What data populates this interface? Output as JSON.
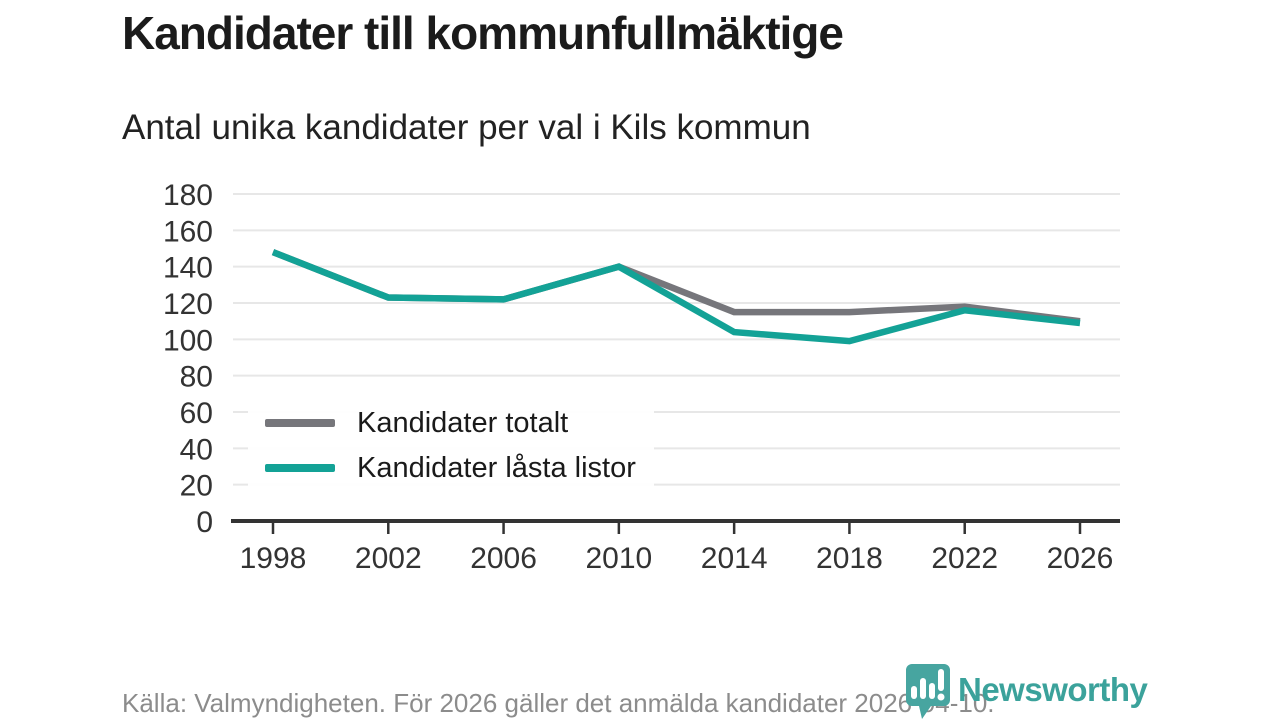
{
  "header": {
    "title": "Kandidater till kommunfullmäktige",
    "subtitle": "Antal unika kandidater per val i Kils kommun"
  },
  "chart_data": {
    "type": "line",
    "categories": [
      "1998",
      "2002",
      "2006",
      "2010",
      "2014",
      "2018",
      "2022",
      "2026"
    ],
    "series": [
      {
        "name": "Kandidater totalt",
        "color": "#76767b",
        "values": [
          148,
          123,
          122,
          140,
          115,
          115,
          118,
          110
        ]
      },
      {
        "name": "Kandidater låsta listor",
        "color": "#13a296",
        "values": [
          148,
          123,
          122,
          140,
          104,
          99,
          116,
          109
        ]
      }
    ],
    "title": "Kandidater till kommunfullmäktige",
    "subtitle": "Antal unika kandidater per val i Kils kommun",
    "xlabel": "",
    "ylabel": "",
    "ylim": [
      0,
      180
    ],
    "yticks": [
      0,
      20,
      40,
      60,
      80,
      100,
      120,
      140,
      160,
      180
    ],
    "grid": "horizontal",
    "legend_position": "inside-bottom-left"
  },
  "footer": {
    "source": "Källa: Valmyndigheten. För 2026 gäller det anmälda kandidater 2026-04-10."
  },
  "logo": {
    "text": "Newsworthy",
    "icon": "newsworthy-bubble-barchart-icon",
    "color": "#3ba29b",
    "icon_color": "#47a5a0"
  }
}
